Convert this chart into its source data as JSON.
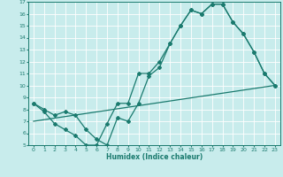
{
  "title": "",
  "xlabel": "Humidex (Indice chaleur)",
  "bg_color": "#c8ecec",
  "grid_color": "#ffffff",
  "line_color": "#1a7a6e",
  "xlim": [
    -0.5,
    23.5
  ],
  "ylim": [
    5,
    17
  ],
  "xticks": [
    0,
    1,
    2,
    3,
    4,
    5,
    6,
    7,
    8,
    9,
    10,
    11,
    12,
    13,
    14,
    15,
    16,
    17,
    18,
    19,
    20,
    21,
    22,
    23
  ],
  "yticks": [
    5,
    6,
    7,
    8,
    9,
    10,
    11,
    12,
    13,
    14,
    15,
    16,
    17
  ],
  "line1_x": [
    0,
    1,
    2,
    3,
    4,
    5,
    6,
    7,
    8,
    9,
    10,
    11,
    12,
    13,
    14,
    15,
    16,
    17,
    18,
    19,
    20,
    21,
    22,
    23
  ],
  "line1_y": [
    8.5,
    7.8,
    6.8,
    6.3,
    5.8,
    5.0,
    5.0,
    6.8,
    8.5,
    8.5,
    11.0,
    11.0,
    12.0,
    13.5,
    15.0,
    16.3,
    16.0,
    16.8,
    16.8,
    15.3,
    14.3,
    12.8,
    11.0,
    10.0
  ],
  "line2_x": [
    0,
    1,
    2,
    3,
    4,
    5,
    6,
    7,
    8,
    9,
    10,
    11,
    12,
    13,
    14,
    15,
    16,
    17,
    18,
    19,
    20,
    21,
    22,
    23
  ],
  "line2_y": [
    8.5,
    8.0,
    7.5,
    7.8,
    7.5,
    6.3,
    5.5,
    5.0,
    7.3,
    7.0,
    8.5,
    10.8,
    11.5,
    13.5,
    15.0,
    16.3,
    16.0,
    16.8,
    16.8,
    15.3,
    14.3,
    12.8,
    11.0,
    10.0
  ],
  "line3_x": [
    0,
    23
  ],
  "line3_y": [
    7.0,
    10.0
  ]
}
